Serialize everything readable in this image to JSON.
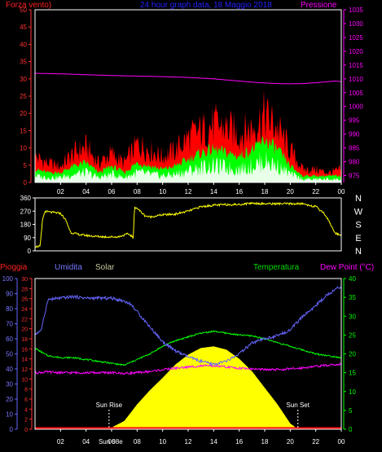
{
  "header": {
    "left_label": "Forza vento)",
    "title": "24 hour graph data, 18 Maggio 2018",
    "right_label": "Pressione"
  },
  "colors": {
    "wind_gust": "#ff0000",
    "wind_avg": "#00ff00",
    "wind_base": "#e8ffe8",
    "pressure": "#ff00ff",
    "direction": "#ffff00",
    "rain": "#ff0000",
    "humidity": "#6666ff",
    "solar": "#ffff00",
    "temperature": "#00ff00",
    "dew_point": "#ff00ff",
    "frame": "#ffffff",
    "title": "#0000ff",
    "solar_label": "#c8c8a0",
    "temp_label": "#00dd00"
  },
  "chart_data": [
    {
      "id": "wind_pressure",
      "type": "area",
      "title": "24 hour graph data, 18 Maggio 2018",
      "xlabel": "",
      "ylabel": "Forza vento)",
      "y2label": "Pressione",
      "x_ticks": [
        "02",
        "04",
        "06",
        "08",
        "10",
        "12",
        "14",
        "16",
        "18",
        "20",
        "22",
        "00"
      ],
      "x_range": [
        0,
        24
      ],
      "ylim": [
        0,
        50
      ],
      "y_ticks": [
        0,
        5,
        10,
        15,
        20,
        25,
        30,
        35,
        40,
        45,
        50
      ],
      "y2lim": [
        972.5,
        1035
      ],
      "y2_ticks": [
        975,
        980,
        985,
        990,
        995,
        1000,
        1005,
        1010,
        1015,
        1020,
        1025,
        1030,
        1035
      ],
      "series": [
        {
          "name": "Pressione",
          "axis": "right",
          "x": [
            0,
            2,
            4,
            6,
            8,
            10,
            12,
            14,
            15,
            16,
            17,
            18,
            19,
            20,
            21,
            22,
            23,
            23.5,
            24
          ],
          "values": [
            1012,
            1011.8,
            1011.5,
            1011.2,
            1011,
            1010.8,
            1010.5,
            1010,
            1009.6,
            1009.2,
            1008.8,
            1008.5,
            1008.3,
            1008.2,
            1008.3,
            1008.6,
            1009,
            1009.2,
            1009
          ]
        },
        {
          "name": "gust",
          "axis": "left",
          "x": [
            0,
            1,
            2,
            3,
            4,
            5,
            6,
            7,
            8,
            9,
            10,
            11,
            12,
            13,
            14,
            15,
            16,
            17,
            18,
            19,
            20,
            21,
            22,
            23,
            24
          ],
          "values": [
            8,
            6,
            5,
            9,
            11,
            6,
            9,
            6,
            12,
            10,
            8,
            10,
            14,
            16,
            18,
            17,
            15,
            17,
            21,
            17,
            10,
            4,
            4,
            3,
            4
          ]
        },
        {
          "name": "avg",
          "axis": "left",
          "x": [
            0,
            1,
            2,
            3,
            4,
            5,
            6,
            7,
            8,
            9,
            10,
            11,
            12,
            13,
            14,
            15,
            16,
            17,
            18,
            19,
            20,
            21,
            22,
            23,
            24
          ],
          "values": [
            4,
            3,
            3,
            5,
            6,
            3,
            5,
            3,
            6,
            5,
            4,
            5,
            7,
            9,
            10,
            9,
            8,
            10,
            13,
            10,
            5,
            2,
            2,
            2,
            2
          ]
        }
      ]
    },
    {
      "id": "direction",
      "type": "line",
      "x_range": [
        0,
        24
      ],
      "ylim": [
        0,
        360
      ],
      "y_ticks": [
        0,
        90,
        180,
        270,
        360
      ],
      "compass_labels": [
        "N",
        "W",
        "S",
        "E",
        "N"
      ],
      "series": [
        {
          "name": "direction",
          "x": [
            0,
            0.4,
            0.6,
            0.8,
            1,
            2,
            2.4,
            2.8,
            3.5,
            4.5,
            5.5,
            6.5,
            7.3,
            7.6,
            7.7,
            7.8,
            8,
            8.6,
            9,
            10,
            11,
            12,
            13,
            14,
            15,
            16,
            17,
            18,
            19,
            20,
            21,
            22,
            22.6,
            23,
            23.5,
            24
          ],
          "values": [
            30,
            30,
            220,
            270,
            265,
            255,
            210,
            125,
            110,
            100,
            95,
            95,
            115,
            100,
            80,
            300,
            290,
            240,
            230,
            245,
            250,
            270,
            300,
            310,
            315,
            315,
            325,
            320,
            320,
            320,
            320,
            300,
            260,
            210,
            120,
            110
          ]
        }
      ]
    },
    {
      "id": "thermo_hygro",
      "type": "line",
      "x_ticks": [
        "02",
        "04",
        "06",
        "08",
        "10",
        "12",
        "14",
        "16",
        "18",
        "20",
        "22",
        "00"
      ],
      "x_range": [
        0,
        24
      ],
      "sun_rise_label": "Sun Rise",
      "sun_set_label": "Sun Set",
      "sun_rise": 5.8,
      "sun_set": 20.6,
      "overlap_label": "Sun 08e",
      "axes": {
        "rain": {
          "label": "Pioggia",
          "ylim": [
            0,
            30
          ],
          "ticks": [
            0,
            2,
            4,
            6,
            8,
            10,
            12,
            14,
            16,
            18,
            20,
            22,
            24,
            26,
            28,
            30
          ]
        },
        "humidity": {
          "label": "Umidita",
          "ylim": [
            0,
            100
          ],
          "ticks": [
            0,
            10,
            20,
            30,
            40,
            50,
            60,
            70,
            80,
            90,
            100
          ]
        },
        "solar": {
          "label": "Solar"
        },
        "temperature": {
          "label": "Temperatura",
          "ylim": [
            0,
            40
          ],
          "ticks": [
            0,
            5,
            10,
            15,
            20,
            25,
            30,
            35,
            40
          ]
        },
        "dew_point": {
          "label": "Dew Point (°C)"
        }
      },
      "series": [
        {
          "name": "Umidita",
          "axis": "humidity",
          "x": [
            0,
            0.5,
            1,
            2,
            3,
            4,
            5,
            6,
            7,
            7.5,
            8,
            9,
            10,
            11,
            12,
            13,
            14,
            15,
            16,
            17,
            18,
            19,
            20,
            21,
            22,
            23,
            24
          ],
          "values": [
            63,
            66,
            86,
            87,
            88,
            87,
            87,
            87,
            85,
            83,
            78,
            68,
            58,
            52,
            48,
            45,
            43,
            45,
            50,
            57,
            60,
            62,
            66,
            75,
            82,
            90,
            95
          ]
        },
        {
          "name": "Temperatura",
          "axis": "temperature",
          "x": [
            0,
            1,
            2,
            3,
            4,
            5,
            6,
            7,
            8,
            9,
            10,
            11,
            12,
            13,
            14,
            15,
            16,
            17,
            18,
            19,
            20,
            21,
            22,
            23,
            24
          ],
          "values": [
            21.5,
            19.5,
            19,
            19,
            18.5,
            18,
            17.5,
            17,
            18.5,
            20,
            22,
            23.5,
            24.5,
            25.5,
            26,
            25.5,
            25,
            24.8,
            24,
            23,
            22,
            21,
            20,
            19.5,
            19
          ]
        },
        {
          "name": "Dew Point",
          "axis": "temperature",
          "x": [
            0,
            1,
            2,
            3,
            4,
            5,
            6,
            7,
            8,
            9,
            10,
            11,
            12,
            13,
            14,
            15,
            16,
            17,
            18,
            19,
            20,
            21,
            22,
            23,
            24
          ],
          "values": [
            15,
            15.2,
            15,
            15,
            15,
            15,
            15,
            14.8,
            15,
            15.3,
            15.8,
            16.2,
            16.5,
            16.8,
            16.8,
            16.5,
            16.2,
            16,
            15.8,
            15.8,
            16,
            16.3,
            16.7,
            17,
            17.3
          ]
        },
        {
          "name": "Solar",
          "axis": "solar_rel",
          "x": [
            5.6,
            6,
            7,
            8,
            9,
            10,
            11,
            12,
            13,
            14,
            15,
            16,
            17,
            18,
            19,
            20,
            20.6
          ],
          "values": [
            0,
            0.02,
            0.1,
            0.3,
            0.47,
            0.62,
            0.78,
            0.9,
            0.98,
            1,
            0.96,
            0.85,
            0.7,
            0.5,
            0.3,
            0.07,
            0
          ]
        },
        {
          "name": "Pioggia",
          "axis": "rain",
          "x": [
            0,
            24
          ],
          "values": [
            0,
            0
          ]
        }
      ]
    }
  ]
}
